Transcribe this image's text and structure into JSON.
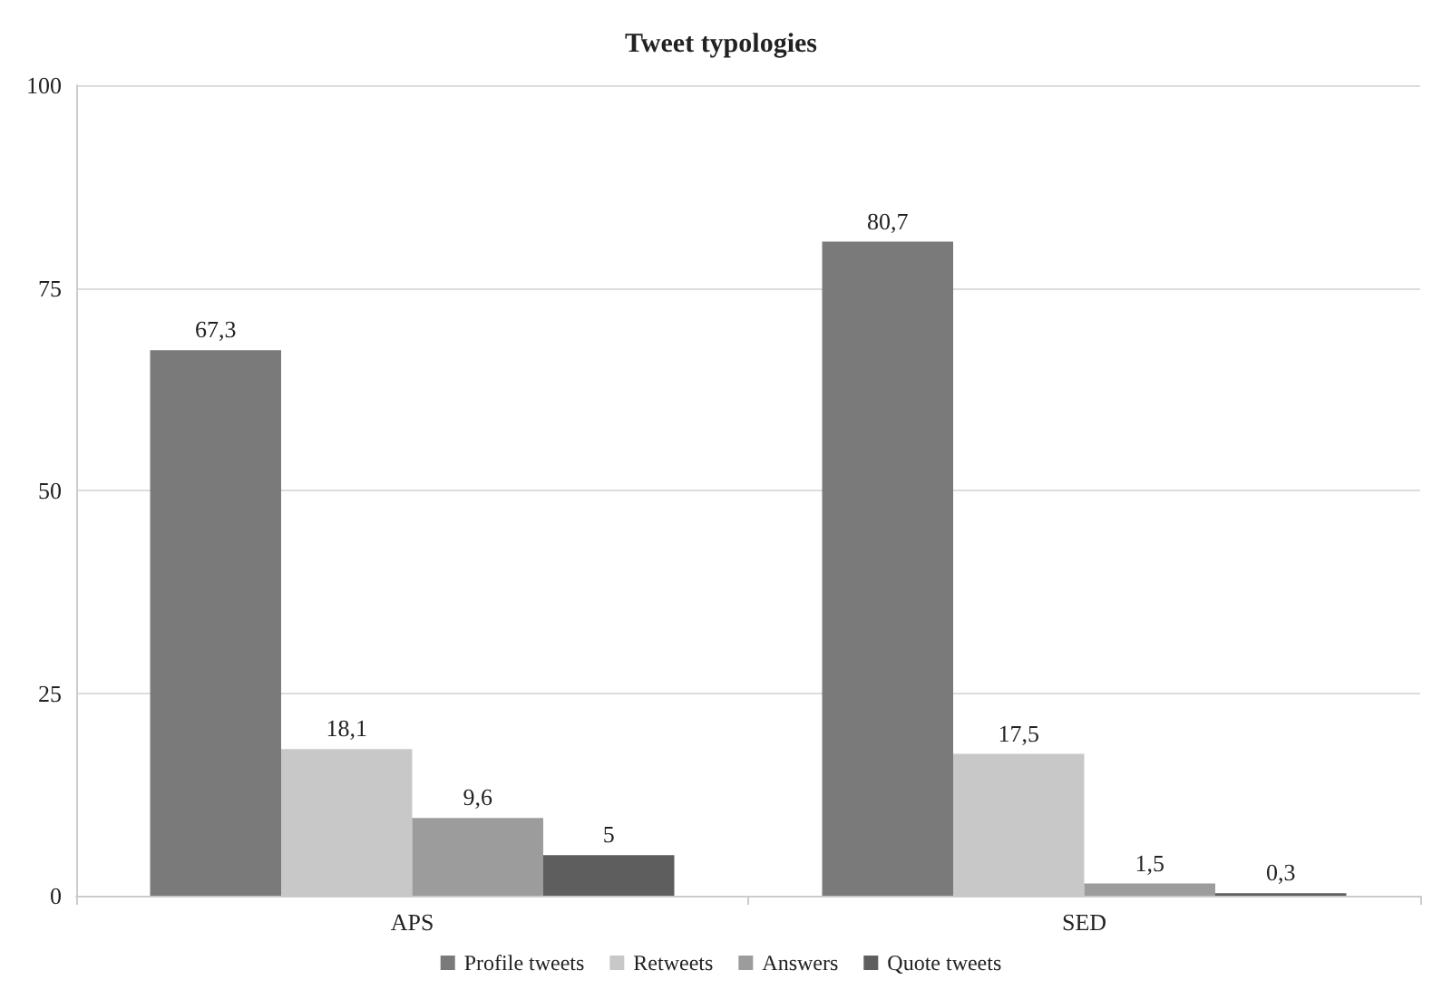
{
  "chart_data": {
    "type": "bar",
    "title": "Tweet typologies",
    "categories": [
      "APS",
      "SED"
    ],
    "series": [
      {
        "name": "Profile tweets",
        "color": "#7a7a7a",
        "values": [
          67.3,
          80.7
        ],
        "value_labels": [
          "67,3",
          "80,7"
        ]
      },
      {
        "name": "Retweets",
        "color": "#c8c8c8",
        "values": [
          18.1,
          17.5
        ],
        "value_labels": [
          "18,1",
          "17,5"
        ]
      },
      {
        "name": "Answers",
        "color": "#9c9c9c",
        "values": [
          9.6,
          1.5
        ],
        "value_labels": [
          "9,6",
          "1,5"
        ]
      },
      {
        "name": "Quote tweets",
        "color": "#5e5e5e",
        "values": [
          5,
          0.3
        ],
        "value_labels": [
          "5",
          "0,3"
        ]
      }
    ],
    "ylim": [
      0,
      100
    ],
    "yticks": [
      0,
      25,
      50,
      75,
      100
    ],
    "grid": "y",
    "legend": "bottom"
  }
}
